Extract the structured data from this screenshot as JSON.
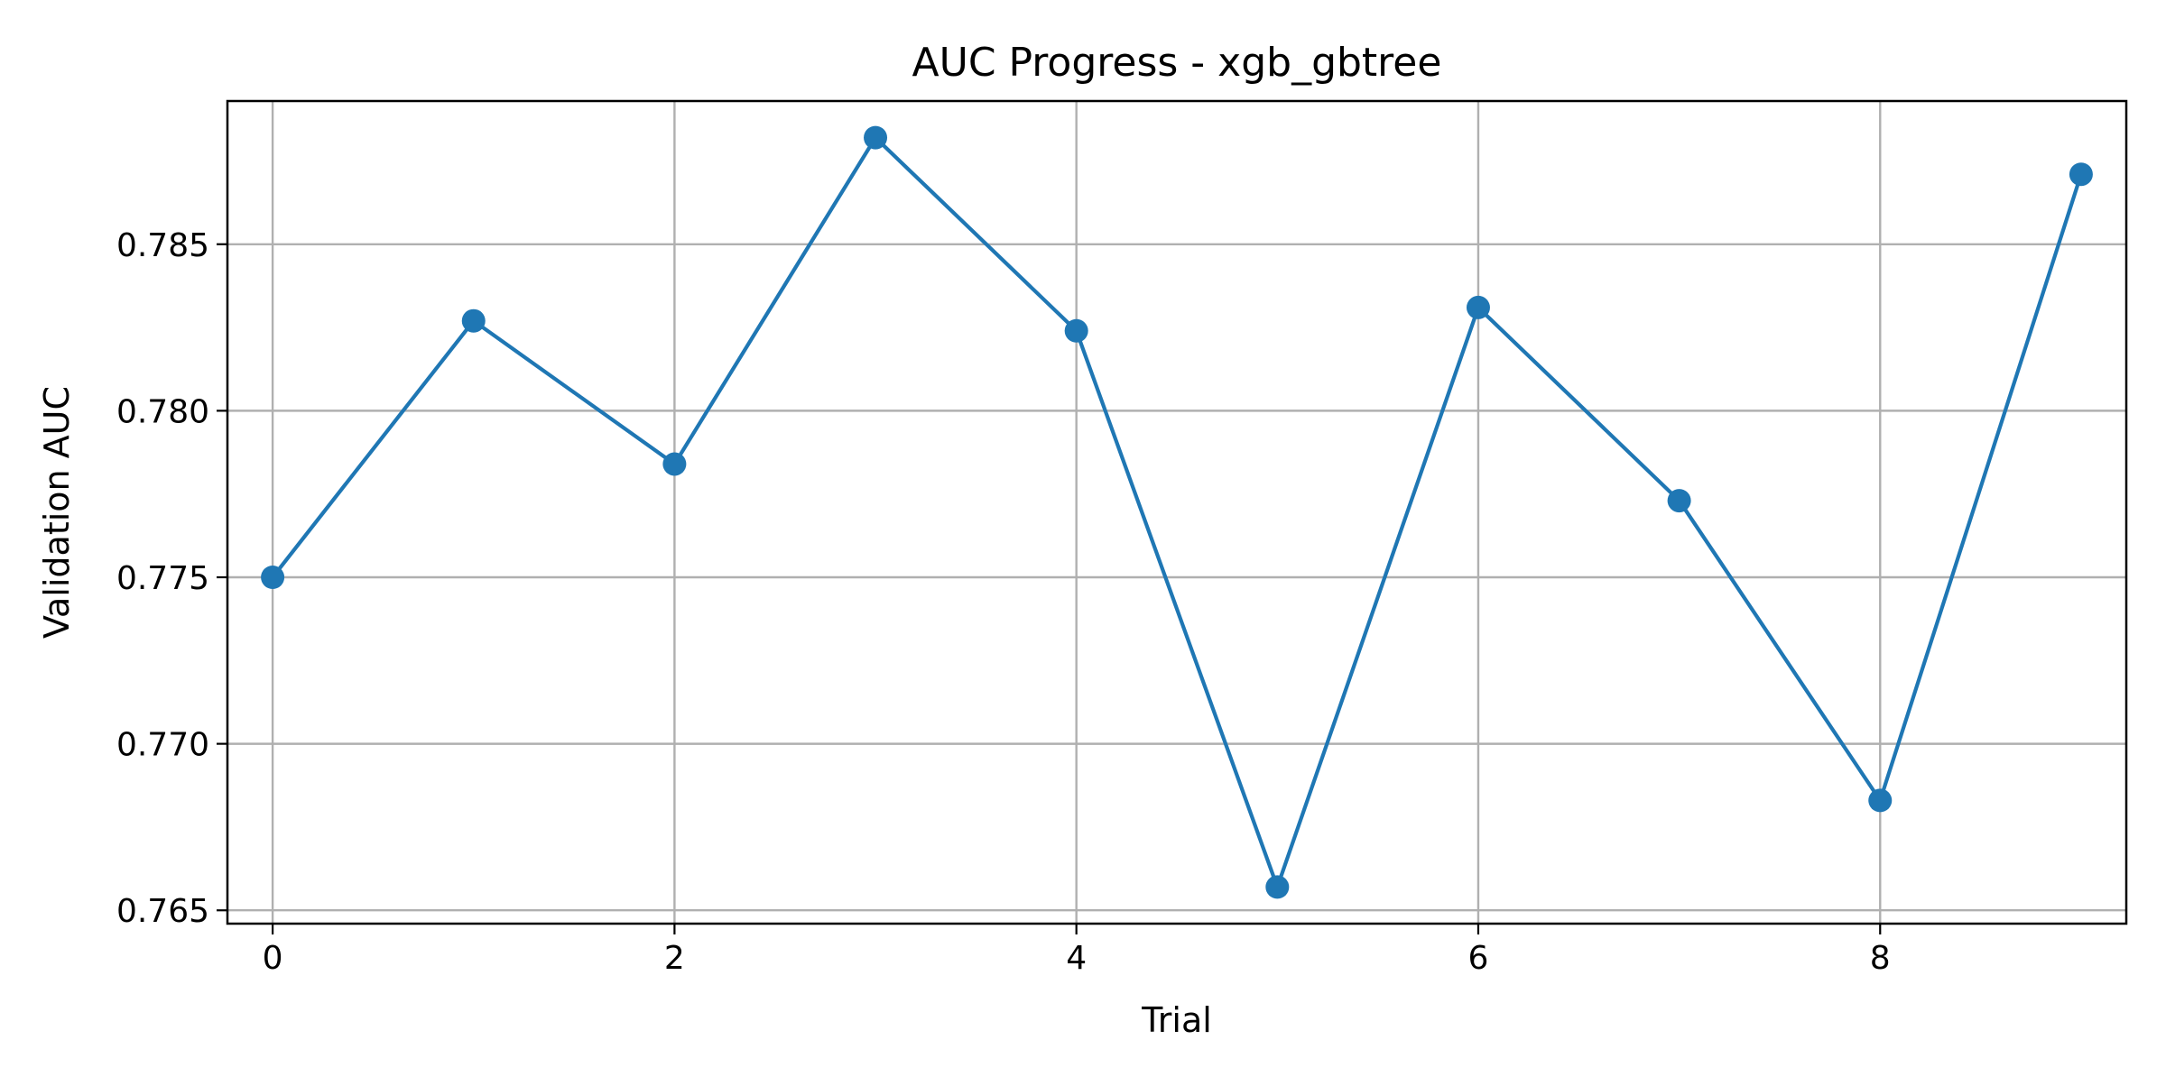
{
  "chart_data": {
    "type": "line",
    "title": "AUC Progress - xgb_gbtree",
    "xlabel": "Trial",
    "ylabel": "Validation AUC",
    "x": [
      0,
      1,
      2,
      3,
      4,
      5,
      6,
      7,
      8,
      9
    ],
    "series": [
      {
        "values": [
          0.775,
          0.7827,
          0.7784,
          0.7882,
          0.7824,
          0.7657,
          0.7831,
          0.7773,
          0.7683,
          0.7871
        ],
        "color": "#1f77b4",
        "marker": "circle"
      }
    ],
    "xlim": [
      -0.225,
      9.225
    ],
    "ylim": [
      0.7646,
      0.7893
    ],
    "xticks": [
      0,
      2,
      4,
      6,
      8
    ],
    "xtick_labels": [
      "0",
      "2",
      "4",
      "6",
      "8"
    ],
    "yticks": [
      0.765,
      0.77,
      0.775,
      0.78,
      0.785
    ],
    "ytick_labels": [
      "0.765",
      "0.770",
      "0.775",
      "0.780",
      "0.785"
    ],
    "grid": true,
    "legend": "none"
  }
}
